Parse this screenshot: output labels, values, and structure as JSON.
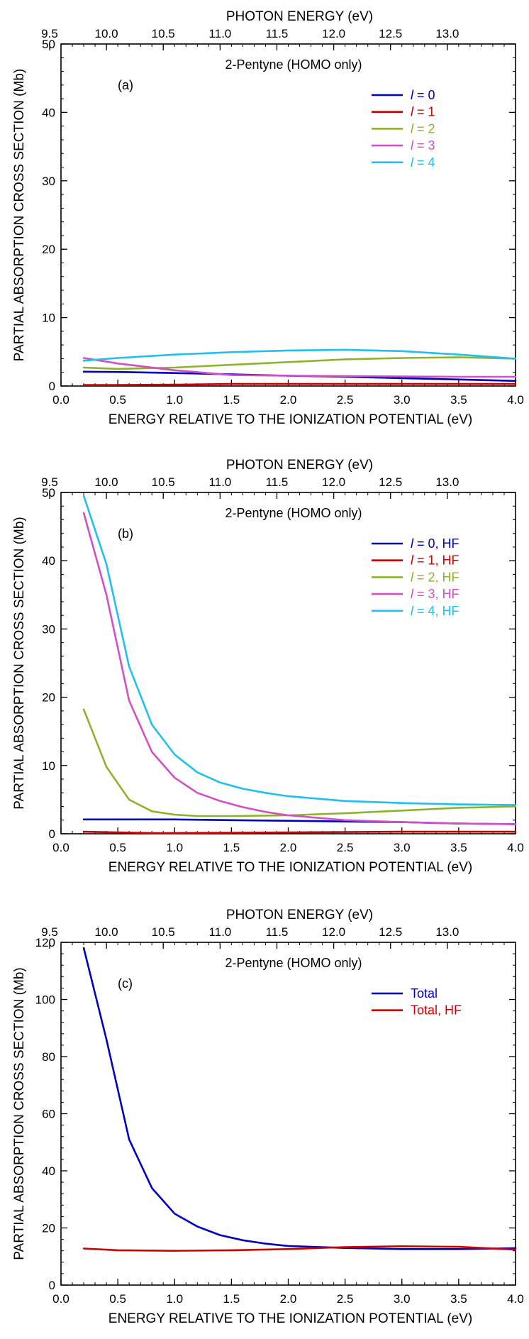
{
  "figure": {
    "top_axis_label": "PHOTON ENERGY  (eV)",
    "bottom_axis_label": "ENERGY RELATIVE TO THE IONIZATION POTENTIAL  (eV)",
    "y_axis_label": "PARTIAL ABSORPTION CROSS SECTION  (Mb)"
  },
  "chart_data": [
    {
      "type": "line",
      "panel_label": "(a)",
      "title": "2-Pentyne (HOMO only)",
      "xlabel": "ENERGY RELATIVE TO THE IONIZATION POTENTIAL  (eV)",
      "x2label": "PHOTON ENERGY  (eV)",
      "ylabel": "PARTIAL ABSORPTION CROSS SECTION  (Mb)",
      "xlim": [
        0,
        4
      ],
      "ylim": [
        0,
        50
      ],
      "x_ticks": [
        "0.0",
        "0.5",
        "1.0",
        "1.5",
        "2.0",
        "2.5",
        "3.0",
        "3.5",
        "4.0"
      ],
      "y_ticks": [
        "0",
        "10",
        "20",
        "30",
        "40",
        "50"
      ],
      "top_ticks": [
        "9.5",
        "10.0",
        "10.5",
        "11.0",
        "11.5",
        "12.0",
        "12.5",
        "13.0"
      ],
      "top_tick_positions": [
        -0.1,
        0.4,
        0.9,
        1.4,
        1.9,
        2.4,
        2.9,
        3.4
      ],
      "legend": "top-right",
      "series": [
        {
          "name_prefix": "l",
          "name_suffix": " = 0",
          "color": "#0000c0",
          "x": [
            0.2,
            0.5,
            1.0,
            1.5,
            2.0,
            2.5,
            3.0,
            3.5,
            4.0
          ],
          "y": [
            2.1,
            2.05,
            1.9,
            1.7,
            1.5,
            1.35,
            1.15,
            0.95,
            0.75
          ]
        },
        {
          "name_prefix": "l",
          "name_suffix": " = 1",
          "color": "#d00000",
          "x": [
            0.2,
            0.5,
            1.0,
            1.5,
            2.0,
            2.5,
            3.0,
            3.5,
            4.0
          ],
          "y": [
            0.15,
            0.15,
            0.2,
            0.3,
            0.3,
            0.3,
            0.3,
            0.3,
            0.3
          ]
        },
        {
          "name_prefix": "l",
          "name_suffix": " = 2",
          "color": "#8db32a",
          "x": [
            0.2,
            0.5,
            1.0,
            1.5,
            2.0,
            2.5,
            3.0,
            3.5,
            4.0
          ],
          "y": [
            2.7,
            2.5,
            2.7,
            3.1,
            3.5,
            3.9,
            4.1,
            4.2,
            4.0
          ]
        },
        {
          "name_prefix": "l",
          "name_suffix": " = 3",
          "color": "#d24fc4",
          "x": [
            0.2,
            0.5,
            1.0,
            1.5,
            2.0,
            2.5,
            3.0,
            3.5,
            4.0
          ],
          "y": [
            4.1,
            3.3,
            2.3,
            1.6,
            1.5,
            1.45,
            1.4,
            1.35,
            1.35
          ]
        },
        {
          "name_prefix": "l",
          "name_suffix": " = 4",
          "color": "#1fbfef",
          "x": [
            0.2,
            0.5,
            1.0,
            1.5,
            2.0,
            2.5,
            3.0,
            3.5,
            4.0
          ],
          "y": [
            3.7,
            4.1,
            4.6,
            4.95,
            5.2,
            5.3,
            5.1,
            4.6,
            4.0
          ]
        }
      ]
    },
    {
      "type": "line",
      "panel_label": "(b)",
      "title": "2-Pentyne (HOMO only)",
      "xlabel": "ENERGY RELATIVE TO THE IONIZATION POTENTIAL  (eV)",
      "x2label": "PHOTON ENERGY  (eV)",
      "ylabel": "PARTIAL ABSORPTION CROSS SECTION  (Mb)",
      "xlim": [
        0,
        4
      ],
      "ylim": [
        0,
        50
      ],
      "x_ticks": [
        "0.0",
        "0.5",
        "1.0",
        "1.5",
        "2.0",
        "2.5",
        "3.0",
        "3.5",
        "4.0"
      ],
      "y_ticks": [
        "0",
        "10",
        "20",
        "30",
        "40",
        "50"
      ],
      "top_ticks": [
        "9.5",
        "10.0",
        "10.5",
        "11.0",
        "11.5",
        "12.0",
        "12.5",
        "13.0"
      ],
      "top_tick_positions": [
        -0.1,
        0.4,
        0.9,
        1.4,
        1.9,
        2.4,
        2.9,
        3.4
      ],
      "legend": "top-right",
      "series": [
        {
          "name_prefix": "l",
          "name_suffix": " = 0, HF",
          "color": "#0000c0",
          "x": [
            0.2,
            0.4,
            0.6,
            0.8,
            1.0,
            1.5,
            2.0,
            2.5,
            3.0,
            3.5,
            4.0
          ],
          "y": [
            2.1,
            2.1,
            2.1,
            2.1,
            2.1,
            2.0,
            1.9,
            1.8,
            1.7,
            1.5,
            1.4
          ]
        },
        {
          "name_prefix": "l",
          "name_suffix": " = 1, HF",
          "color": "#d00000",
          "x": [
            0.2,
            0.5,
            0.8,
            1.0,
            1.5,
            2.0,
            2.5,
            3.0,
            3.5,
            4.0
          ],
          "y": [
            0.3,
            0.2,
            0.1,
            0.1,
            0.15,
            0.2,
            0.25,
            0.3,
            0.3,
            0.3
          ]
        },
        {
          "name_prefix": "l",
          "name_suffix": " = 2, HF",
          "color": "#8db32a",
          "x": [
            0.2,
            0.4,
            0.6,
            0.8,
            1.0,
            1.2,
            1.5,
            2.0,
            2.5,
            3.0,
            3.5,
            4.0
          ],
          "y": [
            18.2,
            9.8,
            5.0,
            3.3,
            2.8,
            2.6,
            2.6,
            2.7,
            3.0,
            3.4,
            3.8,
            4.0
          ]
        },
        {
          "name_prefix": "l",
          "name_suffix": " = 3, HF",
          "color": "#d24fc4",
          "x": [
            0.2,
            0.4,
            0.6,
            0.8,
            1.0,
            1.2,
            1.4,
            1.6,
            1.8,
            2.0,
            2.5,
            3.0,
            3.5,
            4.0
          ],
          "y": [
            47.0,
            35.0,
            19.5,
            12.0,
            8.2,
            6.0,
            4.8,
            3.9,
            3.2,
            2.7,
            2.0,
            1.7,
            1.5,
            1.4
          ]
        },
        {
          "name_prefix": "l",
          "name_suffix": " = 4, HF",
          "color": "#1fbfef",
          "x": [
            0.2,
            0.4,
            0.6,
            0.8,
            1.0,
            1.2,
            1.4,
            1.6,
            1.8,
            2.0,
            2.5,
            3.0,
            3.5,
            4.0
          ],
          "y": [
            49.5,
            39.5,
            24.5,
            16.0,
            11.6,
            9.0,
            7.5,
            6.6,
            6.0,
            5.5,
            4.8,
            4.5,
            4.3,
            4.2
          ]
        }
      ]
    },
    {
      "type": "line",
      "panel_label": "(c)",
      "title": "2-Pentyne (HOMO only)",
      "xlabel": "ENERGY RELATIVE TO THE IONIZATION POTENTIAL  (eV)",
      "x2label": "PHOTON ENERGY  (eV)",
      "ylabel": "PARTIAL ABSORPTION CROSS SECTION  (Mb)",
      "xlim": [
        0,
        4
      ],
      "ylim": [
        0,
        120
      ],
      "x_ticks": [
        "0.0",
        "0.5",
        "1.0",
        "1.5",
        "2.0",
        "2.5",
        "3.0",
        "3.5",
        "4.0"
      ],
      "y_ticks": [
        "0",
        "20",
        "40",
        "60",
        "80",
        "100",
        "120"
      ],
      "top_ticks": [
        "9.5",
        "10.0",
        "10.5",
        "11.0",
        "11.5",
        "12.0",
        "12.5",
        "13.0"
      ],
      "top_tick_positions": [
        -0.1,
        0.4,
        0.9,
        1.4,
        1.9,
        2.4,
        2.9,
        3.4
      ],
      "legend": "top-right",
      "series": [
        {
          "name": "Total",
          "color": "#0000c0",
          "x": [
            0.2,
            0.4,
            0.6,
            0.8,
            1.0,
            1.2,
            1.4,
            1.6,
            1.8,
            2.0,
            2.5,
            3.0,
            3.5,
            4.0
          ],
          "y": [
            118.0,
            86.0,
            51.0,
            34.0,
            25.0,
            20.5,
            17.5,
            15.7,
            14.5,
            13.7,
            13.0,
            12.6,
            12.6,
            12.9
          ]
        },
        {
          "name": "Total, HF",
          "color": "#d00000",
          "x": [
            0.2,
            0.5,
            1.0,
            1.5,
            2.0,
            2.5,
            3.0,
            3.5,
            4.0
          ],
          "y": [
            12.8,
            12.2,
            12.0,
            12.2,
            12.6,
            13.3,
            13.6,
            13.4,
            12.4
          ]
        }
      ]
    }
  ]
}
